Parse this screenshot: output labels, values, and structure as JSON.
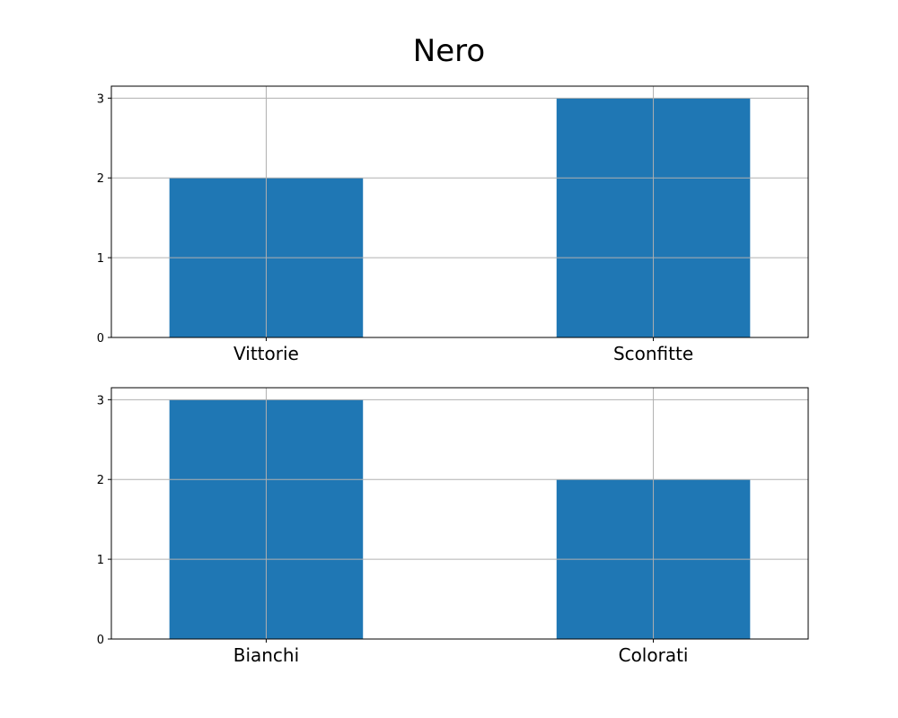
{
  "title": "Nero",
  "colors": {
    "bar": "#1f77b4",
    "grid": "#b0b0b0",
    "axis": "#000000"
  },
  "chart_data": [
    {
      "type": "bar",
      "categories": [
        "Vittorie",
        "Sconfitte"
      ],
      "values": [
        2,
        3
      ],
      "yticks": [
        "0",
        "1",
        "2",
        "3"
      ],
      "ylim": [
        0,
        3.15
      ],
      "grid": true
    },
    {
      "type": "bar",
      "categories": [
        "Bianchi",
        "Colorati"
      ],
      "values": [
        3,
        2
      ],
      "yticks": [
        "0",
        "1",
        "2",
        "3"
      ],
      "ylim": [
        0,
        3.15
      ],
      "grid": true
    }
  ]
}
